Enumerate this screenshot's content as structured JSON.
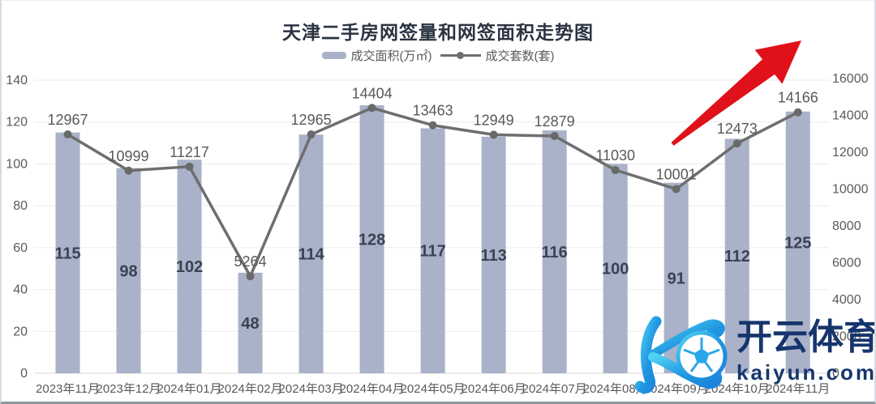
{
  "title": "天津二手房网签量和网签面积走势图",
  "legend": {
    "area_label": "成交面积(万㎡)",
    "count_label": "成交套数(套)"
  },
  "watermark": {
    "brand": "开云体育",
    "domain": "kaiyun.com"
  },
  "colors": {
    "bar": "#a9b2c8",
    "line": "#6e6e6e",
    "marker": "#696969",
    "grid": "#ebebeb",
    "zero_line": "#d9d9d9",
    "axis_text": "#5a5a5a",
    "bar_label": "#3a4254",
    "line_label": "#595959",
    "arrow": "#e0111a",
    "title_text": "#2b3342",
    "watermark_text": "#16356d",
    "logo_gradient_start": "#4fd4f4",
    "logo_gradient_end": "#1a83dc",
    "ball_pattern": "#2aa6e9"
  },
  "chart_data": {
    "type": "bar",
    "subtype": "bar+line dual axis",
    "title": "天津二手房网签量和网签面积走势图",
    "categories": [
      "2023年11月",
      "2023年12月",
      "2024年01月",
      "2024年02月",
      "2024年03月",
      "2024年04月",
      "2024年05月",
      "2024年06月",
      "2024年07月",
      "2024年08月",
      "2024年09月",
      "2024年10月",
      "2024年11月"
    ],
    "series": [
      {
        "name": "成交面积(万㎡)",
        "type": "bar",
        "axis": "left",
        "values": [
          115,
          98,
          102,
          48,
          114,
          128,
          117,
          113,
          116,
          100,
          91,
          112,
          125
        ]
      },
      {
        "name": "成交套数(套)",
        "type": "line",
        "axis": "right",
        "values": [
          12967,
          10999,
          11217,
          5264,
          12965,
          14404,
          13463,
          12949,
          12879,
          11030,
          10001,
          12473,
          14166
        ]
      }
    ],
    "left_axis": {
      "min": 0,
      "max": 140,
      "step": 20,
      "ticks": [
        0,
        20,
        40,
        60,
        80,
        100,
        120,
        140
      ]
    },
    "right_axis": {
      "min": 0,
      "max": 16000,
      "step": 2000,
      "ticks": [
        0,
        2000,
        4000,
        6000,
        8000,
        10000,
        12000,
        14000,
        16000
      ]
    },
    "grid": true,
    "legend_position": "top",
    "annotations": [
      "red upward trend arrow over 2024年09月-2024年11月"
    ]
  }
}
